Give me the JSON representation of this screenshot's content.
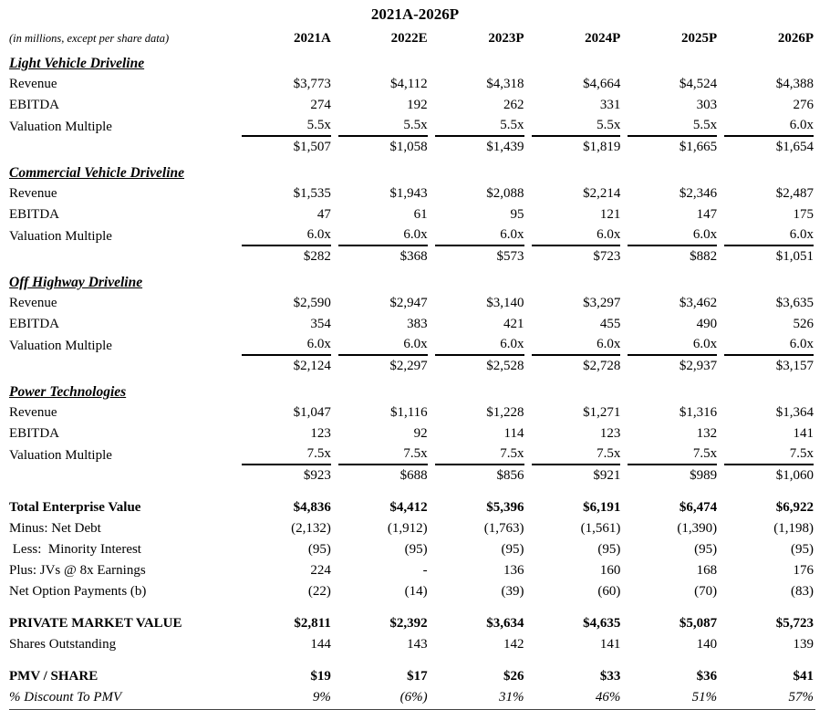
{
  "title": "2021A-2026P",
  "units_note": "(in millions, except per share data)",
  "columns": [
    "2021A",
    "2022E",
    "2023P",
    "2024P",
    "2025P",
    "2026P"
  ],
  "sections": [
    {
      "heading": "Light Vehicle Driveline",
      "rows": [
        {
          "label": "Revenue",
          "values": [
            "$3,773",
            "$4,112",
            "$4,318",
            "$4,664",
            "$4,524",
            "$4,388"
          ]
        },
        {
          "label": "EBITDA",
          "values": [
            "274",
            "192",
            "262",
            "331",
            "303",
            "276"
          ]
        },
        {
          "label": "Valuation Multiple",
          "values": [
            "5.5x",
            "5.5x",
            "5.5x",
            "5.5x",
            "5.5x",
            "6.0x"
          ],
          "underline": true
        }
      ],
      "subtotal": [
        "$1,507",
        "$1,058",
        "$1,439",
        "$1,819",
        "$1,665",
        "$1,654"
      ]
    },
    {
      "heading": "Commercial Vehicle Driveline",
      "rows": [
        {
          "label": "Revenue",
          "values": [
            "$1,535",
            "$1,943",
            "$2,088",
            "$2,214",
            "$2,346",
            "$2,487"
          ]
        },
        {
          "label": "EBITDA",
          "values": [
            "47",
            "61",
            "95",
            "121",
            "147",
            "175"
          ]
        },
        {
          "label": "Valuation Multiple",
          "values": [
            "6.0x",
            "6.0x",
            "6.0x",
            "6.0x",
            "6.0x",
            "6.0x"
          ],
          "underline": true
        }
      ],
      "subtotal": [
        "$282",
        "$368",
        "$573",
        "$723",
        "$882",
        "$1,051"
      ]
    },
    {
      "heading": "Off Highway Driveline",
      "rows": [
        {
          "label": "Revenue",
          "values": [
            "$2,590",
            "$2,947",
            "$3,140",
            "$3,297",
            "$3,462",
            "$3,635"
          ]
        },
        {
          "label": "EBITDA",
          "values": [
            "354",
            "383",
            "421",
            "455",
            "490",
            "526"
          ]
        },
        {
          "label": "Valuation Multiple",
          "values": [
            "6.0x",
            "6.0x",
            "6.0x",
            "6.0x",
            "6.0x",
            "6.0x"
          ],
          "underline": true
        }
      ],
      "subtotal": [
        "$2,124",
        "$2,297",
        "$2,528",
        "$2,728",
        "$2,937",
        "$3,157"
      ]
    },
    {
      "heading": "Power Technologies",
      "rows": [
        {
          "label": "Revenue",
          "values": [
            "$1,047",
            "$1,116",
            "$1,228",
            "$1,271",
            "$1,316",
            "$1,364"
          ]
        },
        {
          "label": "EBITDA",
          "values": [
            "123",
            "92",
            "114",
            "123",
            "132",
            "141"
          ]
        },
        {
          "label": "Valuation Multiple",
          "values": [
            "7.5x",
            "7.5x",
            "7.5x",
            "7.5x",
            "7.5x",
            "7.5x"
          ],
          "underline": true
        }
      ],
      "subtotal": [
        "$923",
        "$688",
        "$856",
        "$921",
        "$989",
        "$1,060"
      ]
    }
  ],
  "summary_blocks": [
    [
      {
        "label": "Total Enterprise Value",
        "values": [
          "$4,836",
          "$4,412",
          "$5,396",
          "$6,191",
          "$6,474",
          "$6,922"
        ],
        "bold": true
      },
      {
        "label": "Minus: Net Debt",
        "values": [
          "(2,132)",
          "(1,912)",
          "(1,763)",
          "(1,561)",
          "(1,390)",
          "(1,198)"
        ]
      },
      {
        "label": " Less:  Minority Interest",
        "values": [
          "(95)",
          "(95)",
          "(95)",
          "(95)",
          "(95)",
          "(95)"
        ]
      },
      {
        "label": "Plus: JVs @ 8x Earnings",
        "values": [
          "224",
          "-",
          "136",
          "160",
          "168",
          "176"
        ]
      },
      {
        "label": "Net Option Payments (b)",
        "values": [
          "(22)",
          "(14)",
          "(39)",
          "(60)",
          "(70)",
          "(83)"
        ]
      }
    ],
    [
      {
        "label": "PRIVATE MARKET VALUE",
        "values": [
          "$2,811",
          "$2,392",
          "$3,634",
          "$4,635",
          "$5,087",
          "$5,723"
        ],
        "bold": true
      },
      {
        "label": "Shares Outstanding",
        "values": [
          "144",
          "143",
          "142",
          "141",
          "140",
          "139"
        ]
      }
    ],
    [
      {
        "label": "PMV / SHARE",
        "values": [
          "$19",
          "$17",
          "$26",
          "$33",
          "$36",
          "$41"
        ],
        "bold": true
      },
      {
        "label": "% Discount To PMV",
        "values": [
          "9%",
          "(6%)",
          "31%",
          "46%",
          "51%",
          "57%"
        ],
        "italic": true
      }
    ]
  ]
}
